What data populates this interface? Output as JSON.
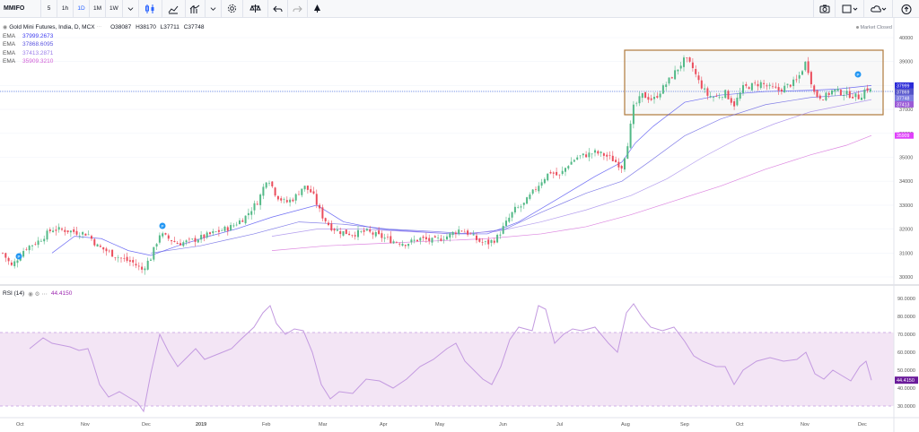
{
  "toolbar": {
    "symbol": "MMIFO",
    "intervals": [
      "5",
      "1h",
      "1D",
      "1M",
      "1W"
    ],
    "active_interval": "1D",
    "icons": [
      "chevron-down-icon",
      "candles-icon",
      "area-icon",
      "indicators-icon",
      "compare-icon",
      "settings-icon",
      "alert-scale-icon",
      "undo-icon",
      "redo-icon",
      "drawing-icon"
    ],
    "right_icons": [
      "camera-icon",
      "layout-icon",
      "cloud-icon",
      "upload-icon"
    ]
  },
  "legend": {
    "title": "Gold Mini Futures, India, D, MCX",
    "open": "O38087",
    "high": "H38170",
    "low": "L37711",
    "close": "C37748",
    "emas": [
      {
        "name": "EMA",
        "value": "37999.2673",
        "color": "#3f3df0"
      },
      {
        "name": "EMA",
        "value": "37868.6095",
        "color": "#5b55e0"
      },
      {
        "name": "EMA",
        "value": "37413.2871",
        "color": "#9b7de8"
      },
      {
        "name": "EMA",
        "value": "35909.3210",
        "color": "#d15fd6"
      }
    ],
    "status": "Market Closed"
  },
  "price_axis": {
    "ticks": [
      "40000",
      "39000",
      "38000",
      "37000",
      "36000",
      "35000",
      "34000",
      "33000",
      "32000",
      "31000",
      "30000"
    ],
    "badges": [
      {
        "label": "37999",
        "color": "#2a2ad8",
        "value": 37999
      },
      {
        "label": "37869",
        "color": "#5352c8",
        "value": 37869
      },
      {
        "label": "37748",
        "color": "#7b7be0",
        "value": 37748
      },
      {
        "label": "37413",
        "color": "#9b5ad6",
        "value": 37413
      },
      {
        "label": "35909",
        "color": "#e040fb",
        "value": 35909
      }
    ]
  },
  "rsi": {
    "label": "RSI (14)",
    "value": "44.4150",
    "ticks": [
      "90.0000",
      "80.0000",
      "70.0000",
      "60.0000",
      "50.0000",
      "40.0000",
      "30.0000"
    ]
  },
  "time_axis": [
    "Oct",
    "Nov",
    "Dec",
    "2019",
    "Feb",
    "Mar",
    "Apr",
    "May",
    "Jun",
    "Jul",
    "Aug",
    "Sep",
    "Oct",
    "Nov",
    "Dec"
  ],
  "colors": {
    "up": "#53b987",
    "down": "#eb4d5c",
    "rsi_line": "#c39ae0",
    "rsi_band": "#f3e5f5",
    "box": "#b07a3c"
  },
  "chart_data": {
    "type": "line",
    "x_range": [
      "2018-10",
      "2019-12"
    ],
    "ylim": [
      29800,
      40200
    ],
    "close_path": [
      [
        0,
        31000
      ],
      [
        10,
        30450
      ],
      [
        25,
        31200
      ],
      [
        40,
        31500
      ],
      [
        55,
        32000
      ],
      [
        70,
        31950
      ],
      [
        85,
        31850
      ],
      [
        95,
        31800
      ],
      [
        105,
        31300
      ],
      [
        115,
        31100
      ],
      [
        130,
        30800
      ],
      [
        145,
        30600
      ],
      [
        155,
        30300
      ],
      [
        165,
        30800
      ],
      [
        175,
        31800
      ],
      [
        185,
        31600
      ],
      [
        195,
        31400
      ],
      [
        210,
        31500
      ],
      [
        225,
        31700
      ],
      [
        240,
        31900
      ],
      [
        255,
        32100
      ],
      [
        270,
        32500
      ],
      [
        285,
        33200
      ],
      [
        295,
        34200
      ],
      [
        305,
        33400
      ],
      [
        315,
        33100
      ],
      [
        325,
        33300
      ],
      [
        335,
        33800
      ],
      [
        345,
        33500
      ],
      [
        355,
        32600
      ],
      [
        365,
        32100
      ],
      [
        375,
        31900
      ],
      [
        390,
        31800
      ],
      [
        405,
        31900
      ],
      [
        420,
        31700
      ],
      [
        435,
        31500
      ],
      [
        450,
        31400
      ],
      [
        465,
        31600
      ],
      [
        480,
        31500
      ],
      [
        495,
        31700
      ],
      [
        510,
        32000
      ],
      [
        520,
        31800
      ],
      [
        530,
        31500
      ],
      [
        540,
        31400
      ],
      [
        550,
        31600
      ],
      [
        560,
        32200
      ],
      [
        570,
        32800
      ],
      [
        580,
        33000
      ],
      [
        590,
        33500
      ],
      [
        600,
        34000
      ],
      [
        610,
        34400
      ],
      [
        620,
        34200
      ],
      [
        630,
        34700
      ],
      [
        640,
        35000
      ],
      [
        650,
        35100
      ],
      [
        660,
        35200
      ],
      [
        670,
        35100
      ],
      [
        680,
        34900
      ],
      [
        690,
        34600
      ],
      [
        697,
        35700
      ],
      [
        703,
        37100
      ],
      [
        713,
        37600
      ],
      [
        725,
        37400
      ],
      [
        740,
        38100
      ],
      [
        750,
        38600
      ],
      [
        760,
        39100
      ],
      [
        768,
        38800
      ],
      [
        775,
        38200
      ],
      [
        785,
        37600
      ],
      [
        795,
        37500
      ],
      [
        805,
        37700
      ],
      [
        815,
        37200
      ],
      [
        825,
        37900
      ],
      [
        835,
        38000
      ],
      [
        845,
        38100
      ],
      [
        855,
        37900
      ],
      [
        865,
        37800
      ],
      [
        875,
        38000
      ],
      [
        885,
        38200
      ],
      [
        895,
        39000
      ],
      [
        905,
        37600
      ],
      [
        915,
        37500
      ],
      [
        925,
        37800
      ],
      [
        935,
        37700
      ],
      [
        945,
        37600
      ],
      [
        955,
        37500
      ],
      [
        962,
        37900
      ],
      [
        968,
        37748
      ]
    ],
    "rsi_path": [
      [
        30,
        62
      ],
      [
        40,
        66
      ],
      [
        45,
        68
      ],
      [
        55,
        65
      ],
      [
        65,
        64
      ],
      [
        75,
        63
      ],
      [
        85,
        61
      ],
      [
        95,
        62
      ],
      [
        100,
        55
      ],
      [
        108,
        42
      ],
      [
        118,
        35
      ],
      [
        130,
        38
      ],
      [
        140,
        35
      ],
      [
        150,
        32
      ],
      [
        157,
        27
      ],
      [
        165,
        48
      ],
      [
        175,
        70
      ],
      [
        185,
        60
      ],
      [
        195,
        52
      ],
      [
        205,
        57
      ],
      [
        215,
        62
      ],
      [
        225,
        56
      ],
      [
        235,
        58
      ],
      [
        245,
        60
      ],
      [
        255,
        62
      ],
      [
        265,
        67
      ],
      [
        280,
        74
      ],
      [
        290,
        82
      ],
      [
        298,
        86
      ],
      [
        305,
        76
      ],
      [
        315,
        70
      ],
      [
        325,
        73
      ],
      [
        335,
        72
      ],
      [
        345,
        60
      ],
      [
        355,
        42
      ],
      [
        365,
        34
      ],
      [
        375,
        38
      ],
      [
        390,
        37
      ],
      [
        405,
        45
      ],
      [
        420,
        44
      ],
      [
        435,
        40
      ],
      [
        450,
        45
      ],
      [
        465,
        52
      ],
      [
        480,
        56
      ],
      [
        495,
        62
      ],
      [
        505,
        65
      ],
      [
        515,
        55
      ],
      [
        525,
        50
      ],
      [
        535,
        45
      ],
      [
        545,
        42
      ],
      [
        555,
        52
      ],
      [
        565,
        67
      ],
      [
        575,
        74
      ],
      [
        590,
        72
      ],
      [
        597,
        86
      ],
      [
        605,
        84
      ],
      [
        615,
        65
      ],
      [
        625,
        70
      ],
      [
        635,
        73
      ],
      [
        645,
        72
      ],
      [
        660,
        74
      ],
      [
        675,
        65
      ],
      [
        685,
        60
      ],
      [
        695,
        82
      ],
      [
        703,
        87
      ],
      [
        712,
        80
      ],
      [
        722,
        74
      ],
      [
        735,
        72
      ],
      [
        748,
        74
      ],
      [
        760,
        66
      ],
      [
        770,
        58
      ],
      [
        780,
        55
      ],
      [
        795,
        52
      ],
      [
        805,
        52
      ],
      [
        815,
        42
      ],
      [
        825,
        50
      ],
      [
        840,
        55
      ],
      [
        855,
        57
      ],
      [
        870,
        55
      ],
      [
        885,
        56
      ],
      [
        895,
        60
      ],
      [
        905,
        48
      ],
      [
        915,
        45
      ],
      [
        925,
        50
      ],
      [
        935,
        47
      ],
      [
        945,
        44
      ],
      [
        955,
        52
      ],
      [
        962,
        55
      ],
      [
        968,
        44.4
      ]
    ],
    "ema_paths": [
      {
        "name": "EMA",
        "values": [
          [
            55,
            31000
          ],
          [
            80,
            31700
          ],
          [
            110,
            31600
          ],
          [
            140,
            31100
          ],
          [
            165,
            30900
          ],
          [
            195,
            31300
          ],
          [
            230,
            31700
          ],
          [
            260,
            32000
          ],
          [
            300,
            32500
          ],
          [
            350,
            33000
          ],
          [
            380,
            32300
          ],
          [
            420,
            32000
          ],
          [
            460,
            31900
          ],
          [
            500,
            31800
          ],
          [
            540,
            31800
          ],
          [
            575,
            32300
          ],
          [
            620,
            33300
          ],
          [
            660,
            34200
          ],
          [
            690,
            34800
          ],
          [
            705,
            35600
          ],
          [
            725,
            36300
          ],
          [
            760,
            37300
          ],
          [
            800,
            37600
          ],
          [
            850,
            37750
          ],
          [
            900,
            37800
          ],
          [
            930,
            37850
          ],
          [
            968,
            38000
          ]
        ]
      },
      {
        "name": "EMA",
        "values": [
          [
            165,
            31000
          ],
          [
            220,
            31300
          ],
          [
            280,
            31800
          ],
          [
            330,
            32300
          ],
          [
            380,
            32200
          ],
          [
            430,
            32000
          ],
          [
            480,
            31900
          ],
          [
            520,
            31800
          ],
          [
            560,
            32000
          ],
          [
            600,
            32700
          ],
          [
            650,
            33500
          ],
          [
            690,
            34000
          ],
          [
            720,
            34800
          ],
          [
            760,
            35900
          ],
          [
            800,
            36600
          ],
          [
            850,
            37200
          ],
          [
            900,
            37500
          ],
          [
            940,
            37600
          ],
          [
            968,
            37870
          ]
        ]
      },
      {
        "name": "EMA",
        "values": [
          [
            300,
            31700
          ],
          [
            350,
            32000
          ],
          [
            400,
            32000
          ],
          [
            450,
            31900
          ],
          [
            500,
            31800
          ],
          [
            550,
            31900
          ],
          [
            600,
            32300
          ],
          [
            650,
            32800
          ],
          [
            700,
            33400
          ],
          [
            740,
            34100
          ],
          [
            780,
            35000
          ],
          [
            820,
            35800
          ],
          [
            860,
            36400
          ],
          [
            900,
            36900
          ],
          [
            940,
            37200
          ],
          [
            968,
            37410
          ]
        ]
      },
      {
        "name": "EMA",
        "values": [
          [
            300,
            31100
          ],
          [
            360,
            31300
          ],
          [
            420,
            31400
          ],
          [
            480,
            31500
          ],
          [
            540,
            31600
          ],
          [
            600,
            31800
          ],
          [
            650,
            32100
          ],
          [
            700,
            32600
          ],
          [
            750,
            33200
          ],
          [
            800,
            33800
          ],
          [
            850,
            34500
          ],
          [
            900,
            35100
          ],
          [
            940,
            35500
          ],
          [
            968,
            35910
          ]
        ]
      }
    ]
  }
}
